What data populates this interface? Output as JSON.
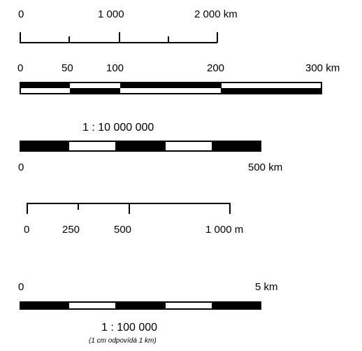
{
  "scale_bar_1": {
    "labels": [
      "0",
      "1 000",
      "2 000 km"
    ]
  },
  "scale_bar_2": {
    "labels": [
      "0",
      "50",
      "100",
      "200",
      "300 km"
    ]
  },
  "scale_bar_3": {
    "ratio": "1 : 10 000 000",
    "labels": [
      "0",
      "500 km"
    ]
  },
  "scale_bar_4": {
    "labels": [
      "0",
      "250",
      "500",
      "1 000 m"
    ]
  },
  "scale_bar_5": {
    "labels": [
      "0",
      "5 km"
    ],
    "ratio": "1 : 100 000",
    "note": "(1 cm odpovídá 1 km)"
  }
}
